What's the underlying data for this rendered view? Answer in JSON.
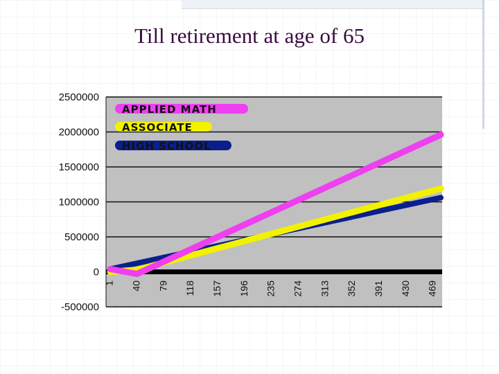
{
  "title": "Till retirement at age of 65",
  "chart_data": {
    "type": "line",
    "x": [
      1,
      40,
      79,
      118,
      157,
      196,
      235,
      274,
      313,
      352,
      391,
      430,
      469
    ],
    "x_tick_labels": [
      "1",
      "40",
      "79",
      "118",
      "157",
      "196",
      "235",
      "274",
      "313",
      "352",
      "391",
      "430",
      "469"
    ],
    "xlim": [
      1,
      480
    ],
    "ylim": [
      -500000,
      2500000
    ],
    "y_ticks": [
      2500000,
      2000000,
      1500000,
      1000000,
      500000,
      0,
      -500000
    ],
    "y_tick_labels": [
      "2500000",
      "2000000",
      "1500000",
      "1000000",
      "500000",
      "0",
      "-500000"
    ],
    "grid": true,
    "legend_position": "top-left",
    "series": [
      {
        "name": "APPLIED MATH",
        "color": "#ee3ff0",
        "x": [
          1,
          40,
          480
        ],
        "values": [
          40000,
          -30000,
          1960000
        ]
      },
      {
        "name": "ASSOCIATE",
        "color": "#f2f200",
        "x": [
          1,
          40,
          480
        ],
        "values": [
          0,
          30000,
          1190000
        ]
      },
      {
        "name": "HIGH SCHOOL",
        "color": "#0b1f8c",
        "x": [
          1,
          480
        ],
        "values": [
          40000,
          1060000
        ]
      }
    ]
  }
}
